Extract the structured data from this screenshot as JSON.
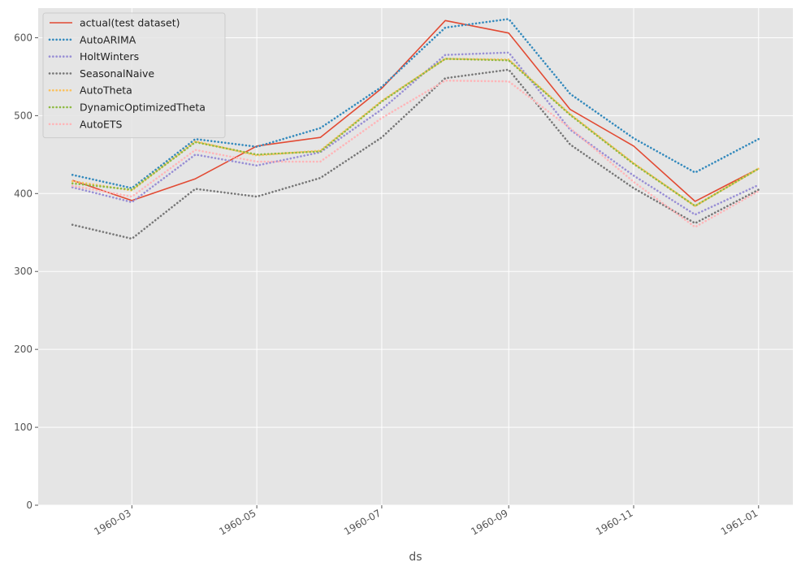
{
  "chart_data": {
    "type": "line",
    "xlabel": "ds",
    "ylabel": "",
    "x": [
      "1960-02-01",
      "1960-03-01",
      "1960-04-01",
      "1960-05-01",
      "1960-06-01",
      "1960-07-01",
      "1960-08-01",
      "1960-09-01",
      "1960-10-01",
      "1960-11-01",
      "1960-12-01",
      "1961-01-01"
    ],
    "x_ticks": [
      "1960-03",
      "1960-05",
      "1960-07",
      "1960-09",
      "1960-11",
      "1961-01"
    ],
    "y_ticks": [
      0,
      100,
      200,
      300,
      400,
      500,
      600
    ],
    "ylim": [
      0,
      638
    ],
    "grid": true,
    "legend_position": "top-left",
    "series": [
      {
        "name": "actual(test dataset)",
        "style": "solid",
        "color": "#E24A33",
        "values": [
          417,
          391,
          419,
          461,
          472,
          535,
          622,
          606,
          508,
          461,
          390,
          432
        ]
      },
      {
        "name": "AutoARIMA",
        "style": "dotted",
        "color": "#348ABD",
        "values": [
          424,
          407,
          470,
          460,
          484,
          537,
          613,
          624,
          528,
          471,
          427,
          470
        ]
      },
      {
        "name": "HoltWinters",
        "style": "dotted",
        "color": "#988ED5",
        "values": [
          408,
          389,
          450,
          436,
          453,
          508,
          578,
          581,
          482,
          423,
          373,
          411
        ]
      },
      {
        "name": "SeasonalNaive",
        "style": "dotted",
        "color": "#777777",
        "values": [
          360,
          342,
          406,
          396,
          420,
          472,
          548,
          559,
          463,
          407,
          362,
          405
        ]
      },
      {
        "name": "AutoTheta",
        "style": "dotted",
        "color": "#FBC15E",
        "values": [
          416,
          404,
          467,
          449,
          455,
          519,
          573,
          572,
          502,
          439,
          384,
          432
        ]
      },
      {
        "name": "DynamicOptimizedTheta",
        "style": "dotted",
        "color": "#8EBA42",
        "values": [
          413,
          405,
          466,
          450,
          454,
          518,
          573,
          571,
          501,
          438,
          384,
          432
        ]
      },
      {
        "name": "AutoETS",
        "style": "dotted",
        "color": "#FFB5B8",
        "values": [
          410,
          396,
          456,
          441,
          441,
          497,
          545,
          544,
          484,
          415,
          357,
          403
        ]
      }
    ]
  }
}
